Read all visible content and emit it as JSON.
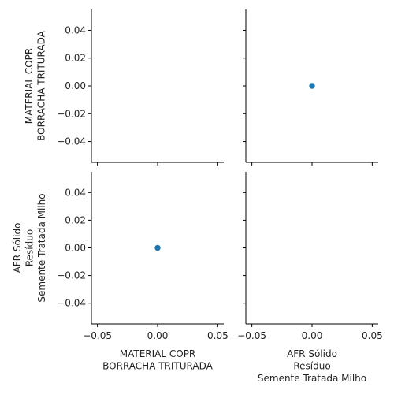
{
  "chart_data": {
    "type": "scatter",
    "grid": false,
    "variables": [
      [
        "MATERIAL COPR",
        "BORRACHA TRITURADA"
      ],
      [
        "AFR Sólido",
        "Resíduo",
        "Semente Tratada Milho"
      ]
    ],
    "xlim": [
      -0.055,
      0.055
    ],
    "ylim": [
      -0.055,
      0.055
    ],
    "ticks": [
      -0.04,
      -0.02,
      0.0,
      0.02,
      0.04
    ],
    "x_tick_labels": [
      "−0.05",
      "0.00",
      "0.05"
    ],
    "y_tick_labels": [
      "−0.04",
      "−0.02",
      "0.00",
      "0.02",
      "0.04"
    ],
    "point_color": "#1f77b4",
    "panels": [
      {
        "row": 0,
        "col": 0,
        "points": []
      },
      {
        "row": 0,
        "col": 1,
        "points": [
          {
            "x": 0.0,
            "y": 0.0
          }
        ]
      },
      {
        "row": 1,
        "col": 0,
        "points": [
          {
            "x": 0.0,
            "y": 0.0
          }
        ]
      },
      {
        "row": 1,
        "col": 1,
        "points": []
      }
    ]
  }
}
